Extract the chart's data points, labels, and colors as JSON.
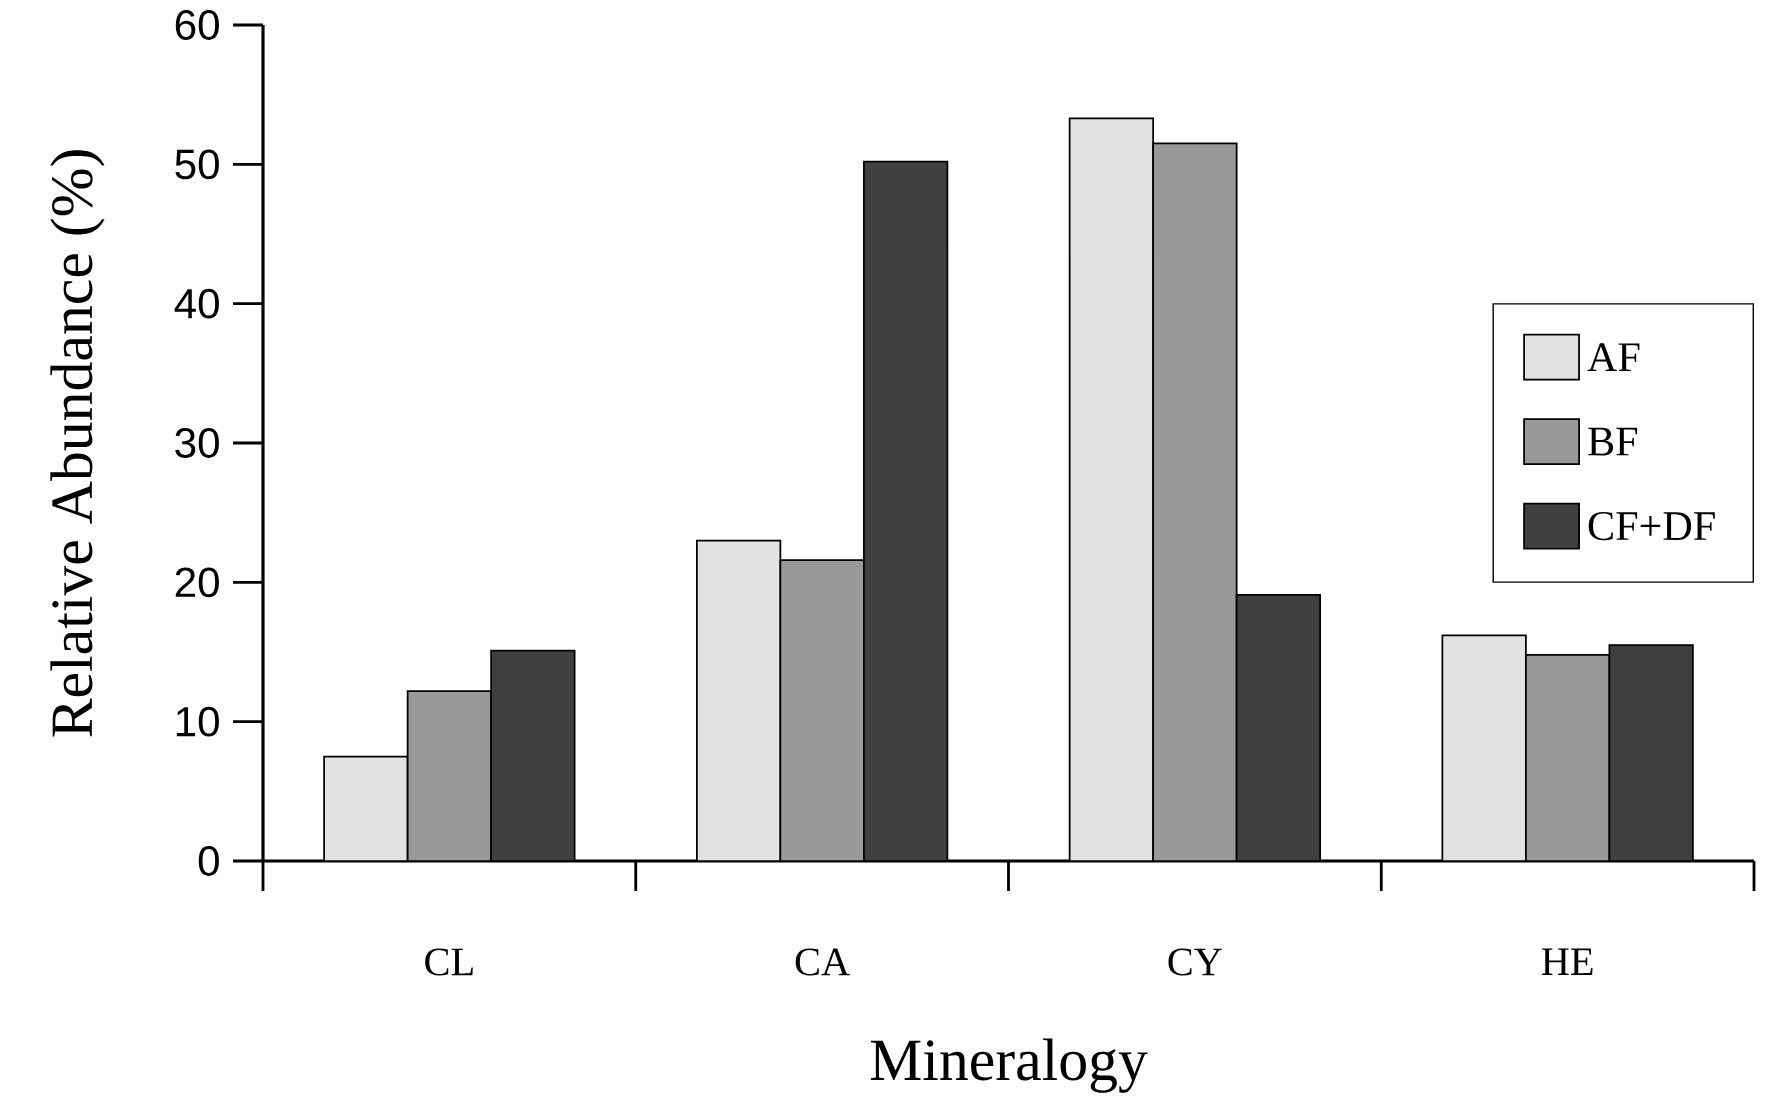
{
  "chart_data": {
    "type": "bar",
    "xlabel": "Mineralogy",
    "ylabel": "Relative Abundance (%)",
    "categories": [
      "CL",
      "CA",
      "CY",
      "HE"
    ],
    "series": [
      {
        "name": "AF",
        "color": "#e2e2e2",
        "values": [
          7.5,
          23.0,
          53.3,
          16.2
        ]
      },
      {
        "name": "BF",
        "color": "#999999",
        "values": [
          12.2,
          21.6,
          51.5,
          14.8
        ]
      },
      {
        "name": "CF+DF",
        "color": "#404040",
        "values": [
          15.1,
          50.2,
          19.1,
          15.5
        ]
      }
    ],
    "ylim": [
      0,
      60
    ],
    "yticks": [
      0,
      10,
      20,
      30,
      40,
      50,
      60
    ],
    "grid": false,
    "legend": "right"
  }
}
